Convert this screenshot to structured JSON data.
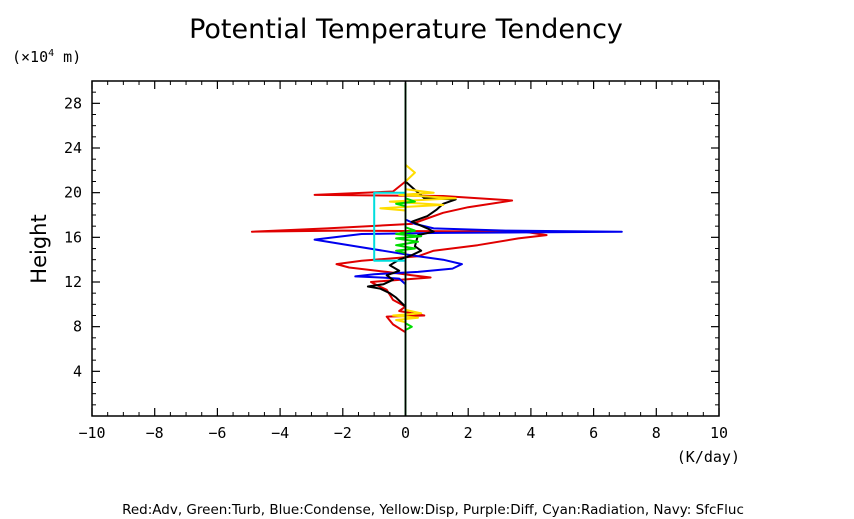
{
  "chart_data": {
    "type": "line",
    "title": "Potential Temperature Tendency",
    "xlabel": "(K/day)",
    "ylabel": "Height",
    "y_unit_prefix": "(×10",
    "y_unit_exp": "4",
    "y_unit_suffix": " m)",
    "xlim": [
      -10,
      10
    ],
    "ylim": [
      0,
      30
    ],
    "x_ticks": [
      -10,
      -8,
      -6,
      -4,
      -2,
      0,
      2,
      4,
      6,
      8,
      10
    ],
    "x_tick_labels": [
      "−10",
      "−8",
      "−6",
      "−4",
      "−2",
      "0",
      "2",
      "4",
      "6",
      "8",
      "10"
    ],
    "y_ticks": [
      4,
      8,
      12,
      16,
      20,
      24,
      28
    ],
    "y_tick_labels": [
      "4",
      "8",
      "12",
      "16",
      "20",
      "24",
      "28"
    ],
    "grid": false,
    "legend_note": "Red:Adv, Green:Turb, Blue:Condense, Yellow:Disp, Purple:Diff, Cyan:Radiation, Navy: SfcFluc",
    "zero_line_color": "#000000",
    "series": [
      {
        "key": "red",
        "color": "#e00000",
        "points": [
          [
            0,
            0
          ],
          [
            0,
            7.5
          ],
          [
            -0.4,
            8.2
          ],
          [
            -0.6,
            8.9
          ],
          [
            0.6,
            9.0
          ],
          [
            -0.2,
            9.4
          ],
          [
            0,
            9.8
          ],
          [
            -0.4,
            10.4
          ],
          [
            -0.6,
            11.3
          ],
          [
            -0.9,
            11.7
          ],
          [
            -1.1,
            12.0
          ],
          [
            0.8,
            12.4
          ],
          [
            0.2,
            12.6
          ],
          [
            -0.6,
            12.9
          ],
          [
            -1.8,
            13.3
          ],
          [
            -2.2,
            13.6
          ],
          [
            -1.4,
            13.9
          ],
          [
            0.4,
            14.3
          ],
          [
            0.9,
            14.8
          ],
          [
            2.3,
            15.3
          ],
          [
            3.6,
            15.9
          ],
          [
            4.5,
            16.2
          ],
          [
            3.8,
            16.5
          ],
          [
            -2.0,
            16.6
          ],
          [
            -4.9,
            16.5
          ],
          [
            -2.5,
            16.8
          ],
          [
            0.2,
            17.2
          ],
          [
            0.6,
            17.6
          ],
          [
            1.2,
            18.2
          ],
          [
            2.0,
            18.7
          ],
          [
            3.4,
            19.3
          ],
          [
            1.2,
            19.7
          ],
          [
            -2.9,
            19.8
          ],
          [
            -0.4,
            20.1
          ],
          [
            0,
            21.0
          ],
          [
            0,
            29.8
          ]
        ]
      },
      {
        "key": "blue",
        "color": "#0000ee",
        "points": [
          [
            0,
            0
          ],
          [
            0,
            9.0
          ],
          [
            0,
            11.8
          ],
          [
            -0.2,
            12.3
          ],
          [
            -0.8,
            12.4
          ],
          [
            -1.6,
            12.5
          ],
          [
            -1.0,
            12.7
          ],
          [
            0.4,
            12.9
          ],
          [
            1.5,
            13.2
          ],
          [
            1.8,
            13.6
          ],
          [
            1.2,
            14.0
          ],
          [
            0.4,
            14.3
          ],
          [
            -0.5,
            14.7
          ],
          [
            -1.6,
            15.2
          ],
          [
            -2.9,
            15.8
          ],
          [
            -1.4,
            16.3
          ],
          [
            1.2,
            16.4
          ],
          [
            6.9,
            16.5
          ],
          [
            3.2,
            16.6
          ],
          [
            0.9,
            16.8
          ],
          [
            0.3,
            17.2
          ],
          [
            0,
            17.6
          ],
          [
            0,
            29.8
          ]
        ]
      },
      {
        "key": "black",
        "color": "#000000",
        "points": [
          [
            0,
            0
          ],
          [
            0,
            9.8
          ],
          [
            -0.3,
            10.6
          ],
          [
            -0.5,
            11.0
          ],
          [
            -0.8,
            11.4
          ],
          [
            -1.2,
            11.6
          ],
          [
            -0.7,
            11.8
          ],
          [
            -0.4,
            12.2
          ],
          [
            -0.6,
            12.6
          ],
          [
            -0.2,
            13.0
          ],
          [
            -0.5,
            13.5
          ],
          [
            -0.2,
            14.0
          ],
          [
            0.2,
            14.4
          ],
          [
            0.5,
            14.8
          ],
          [
            0.3,
            15.2
          ],
          [
            0.4,
            16.2
          ],
          [
            0.9,
            16.5
          ],
          [
            0.7,
            16.8
          ],
          [
            0.2,
            17.4
          ],
          [
            0.7,
            17.9
          ],
          [
            1.0,
            18.5
          ],
          [
            1.2,
            19.0
          ],
          [
            1.6,
            19.4
          ],
          [
            0.6,
            19.5
          ],
          [
            0,
            21.0
          ],
          [
            0,
            22.0
          ],
          [
            0,
            29.8
          ]
        ]
      },
      {
        "key": "yellow",
        "color": "#ffdd00",
        "points": [
          [
            0,
            0
          ],
          [
            0,
            8.4
          ],
          [
            -0.3,
            8.6
          ],
          [
            0.4,
            8.8
          ],
          [
            -0.4,
            9.0
          ],
          [
            0.5,
            9.2
          ],
          [
            0,
            9.5
          ],
          [
            0,
            18.4
          ],
          [
            -0.8,
            18.6
          ],
          [
            1.2,
            18.9
          ],
          [
            -0.5,
            19.2
          ],
          [
            1.6,
            19.5
          ],
          [
            -0.2,
            19.8
          ],
          [
            0.9,
            20.0
          ],
          [
            0,
            20.3
          ],
          [
            0,
            21.0
          ],
          [
            0.3,
            21.8
          ],
          [
            0,
            22.5
          ],
          [
            0,
            29.8
          ]
        ]
      },
      {
        "key": "green",
        "color": "#00dd00",
        "points": [
          [
            0,
            0
          ],
          [
            0,
            7.7
          ],
          [
            0.2,
            8.0
          ],
          [
            0,
            8.3
          ],
          [
            0,
            14.6
          ],
          [
            -0.3,
            14.8
          ],
          [
            0.3,
            15.0
          ],
          [
            -0.3,
            15.3
          ],
          [
            0.4,
            15.6
          ],
          [
            -0.3,
            15.9
          ],
          [
            0.5,
            16.1
          ],
          [
            -0.3,
            16.3
          ],
          [
            0.3,
            16.6
          ],
          [
            0,
            16.9
          ],
          [
            0,
            18.8
          ],
          [
            -0.3,
            19.0
          ],
          [
            0.3,
            19.2
          ],
          [
            0,
            19.5
          ],
          [
            0,
            29.8
          ]
        ]
      },
      {
        "key": "cyan",
        "color": "#00dddd",
        "points": [
          [
            0,
            13.9
          ],
          [
            -1.0,
            13.9
          ],
          [
            -1.0,
            20.0
          ],
          [
            0,
            20.0
          ]
        ]
      },
      {
        "key": "purple",
        "color": "#880088",
        "points": [
          [
            0,
            0
          ],
          [
            0,
            29.8
          ]
        ]
      },
      {
        "key": "navy",
        "color": "#000080",
        "points": [
          [
            0,
            0
          ],
          [
            0,
            29.8
          ]
        ]
      }
    ]
  }
}
